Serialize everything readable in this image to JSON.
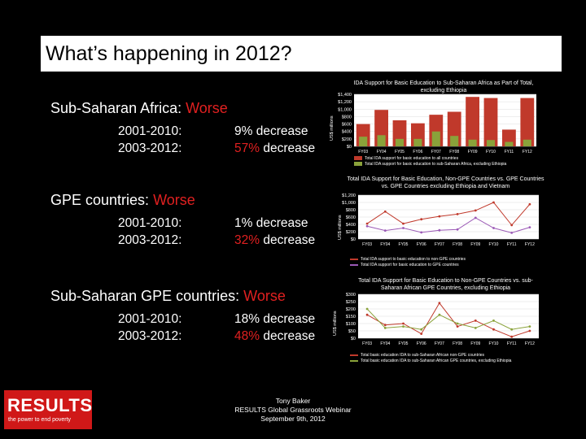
{
  "slide": {
    "title": "What’s happening in 2012?",
    "sections": [
      {
        "heading": "Sub-Saharan Africa:",
        "verdict": "Worse",
        "rows": [
          {
            "period": "2001-2010:",
            "value": "9% decrease"
          },
          {
            "period": "2003-2012:",
            "value_pct": "57%",
            "value_rest": " decrease"
          }
        ]
      },
      {
        "heading": "GPE countries:",
        "verdict": "Worse",
        "rows": [
          {
            "period": "2001-2010:",
            "value": "1% decrease"
          },
          {
            "period": "2003-2012:",
            "value_pct": "32%",
            "value_rest": " decrease"
          }
        ]
      },
      {
        "heading": "Sub-Saharan GPE countries:",
        "verdict": "Worse",
        "rows": [
          {
            "period": "2001-2010:",
            "value": "18% decrease"
          },
          {
            "period": "2003-2012:",
            "value_pct": "48%",
            "value_rest": " decrease"
          }
        ]
      }
    ],
    "footer": {
      "line1": "Tony Baker",
      "line2": "RESULTS Global Grassroots Webinar",
      "line3": "September 9th, 2012"
    },
    "logo": {
      "name": "RESULTS",
      "tagline": "the power to end poverty"
    }
  },
  "colors": {
    "total": "#c0392b",
    "ssa": "#8aa23a",
    "gpe": "#9b59b6",
    "accent": "#e02020"
  },
  "chart_data": [
    {
      "type": "bar",
      "title": "IDA Support for Basic Education to Sub-Saharan Africa as Part of Total, excluding Ethiopia",
      "ylabel": "US$ millions",
      "categories": [
        "FY03",
        "FY04",
        "FY05",
        "FY06",
        "FY07",
        "FY08",
        "FY09",
        "FY10",
        "FY11",
        "FY12"
      ],
      "ylim": [
        0,
        1400
      ],
      "yticks": [
        "$0",
        "$200",
        "$400",
        "$600",
        "$800",
        "$1,000",
        "$1,200",
        "$1,400"
      ],
      "series": [
        {
          "name": "Total IDA support for basic education to all countries",
          "values": [
            600,
            980,
            700,
            620,
            850,
            930,
            1330,
            1300,
            450,
            1300
          ]
        },
        {
          "name": "Total IDA support for basic education to sub-Saharan Africa, excluding Ethiopia",
          "values": [
            260,
            300,
            200,
            200,
            400,
            280,
            180,
            170,
            120,
            180
          ]
        }
      ]
    },
    {
      "type": "line",
      "title": "Total IDA Support for Basic Education, Non-GPE Countries vs. GPE Countries vs. GPE Countries excluding Ethiopia and Vietnam",
      "ylabel": "US$ millions",
      "categories": [
        "FY03",
        "FY04",
        "FY05",
        "FY06",
        "FY07",
        "FY08",
        "FY09",
        "FY10",
        "FY11",
        "FY12"
      ],
      "ylim": [
        0,
        1200
      ],
      "yticks": [
        "$0",
        "$200",
        "$400",
        "$600",
        "$800",
        "$1,000",
        "$1,200"
      ],
      "series": [
        {
          "name": "Total IDA support to basic education to non-GPE countries",
          "values": [
            420,
            750,
            420,
            540,
            620,
            680,
            780,
            1000,
            380,
            950
          ]
        },
        {
          "name": "Total IDA support for basic education to GPE countries",
          "values": [
            350,
            230,
            300,
            180,
            240,
            260,
            580,
            300,
            170,
            320
          ]
        }
      ]
    },
    {
      "type": "line",
      "title": "Total IDA Support for Basic Education to Non-GPE Countries vs. sub-Saharan African GPE Countries, excluding Ethiopia",
      "ylabel": "US$ millions",
      "categories": [
        "FY03",
        "FY04",
        "FY05",
        "FY06",
        "FY07",
        "FY08",
        "FY09",
        "FY10",
        "FY11",
        "FY12"
      ],
      "ylim": [
        0,
        300
      ],
      "yticks": [
        "$0",
        "$50",
        "$100",
        "$150",
        "$200",
        "$250",
        "$300"
      ],
      "series": [
        {
          "name": "Total basic education IDA to sub-Saharan African non-GPE countries",
          "values": [
            160,
            90,
            100,
            30,
            240,
            80,
            120,
            60,
            10,
            50
          ]
        },
        {
          "name": "Total basic education IDA to sub-Saharan African GPE countries, excluding Ethiopia",
          "values": [
            200,
            70,
            80,
            60,
            160,
            100,
            70,
            120,
            60,
            80
          ]
        }
      ]
    }
  ]
}
